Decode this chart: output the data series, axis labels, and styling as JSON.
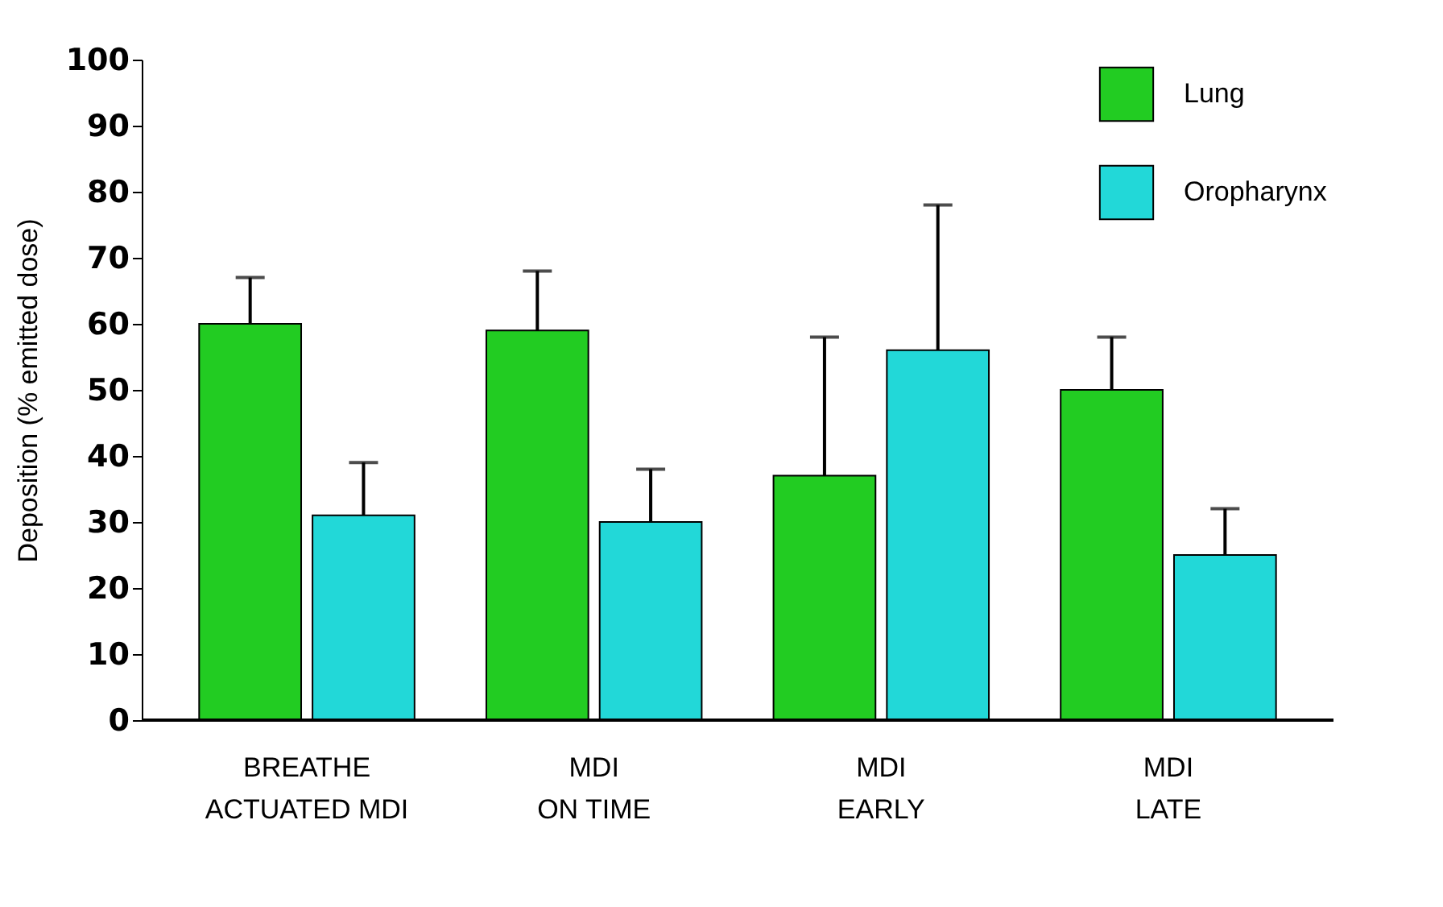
{
  "chart_data": {
    "type": "bar",
    "ylabel": "Deposition (% emitted dose)",
    "categories": [
      "BREATHE\nACTUATED MDI",
      "MDI\nON TIME",
      "MDI\nEARLY",
      "MDI\nLATE"
    ],
    "series": [
      {
        "name": "Lung",
        "color": "#22cc22",
        "values": [
          60,
          59,
          37,
          50
        ],
        "errors": [
          [
            60,
            67
          ],
          [
            59,
            68
          ],
          [
            37,
            58
          ],
          [
            50,
            58
          ]
        ]
      },
      {
        "name": "Oropharynx",
        "color": "#22d8d8",
        "values": [
          31,
          30,
          56,
          25
        ],
        "errors": [
          [
            31,
            39
          ],
          [
            30,
            38
          ],
          [
            56,
            78
          ],
          [
            25,
            32
          ]
        ]
      }
    ],
    "ylim": [
      0,
      100
    ],
    "yticks": [
      0,
      10,
      20,
      30,
      40,
      50,
      60,
      70,
      80,
      90,
      100
    ],
    "grid": false,
    "legend": "top right"
  }
}
